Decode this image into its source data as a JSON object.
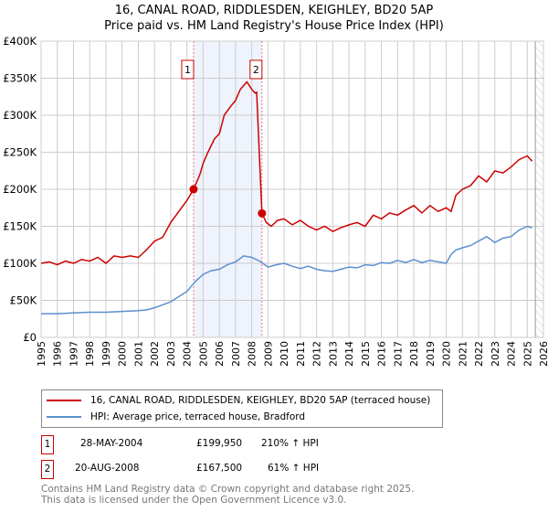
{
  "chart_data": {
    "type": "line",
    "title": "16, CANAL ROAD, RIDDLESDEN, KEIGHLEY, BD20 5AP",
    "subtitle": "Price paid vs. HM Land Registry's House Price Index (HPI)",
    "xlim": [
      1995,
      2026
    ],
    "ylim": [
      0,
      400000
    ],
    "x_ticks": [
      "1995",
      "1996",
      "1997",
      "1998",
      "1999",
      "2000",
      "2001",
      "2002",
      "2003",
      "2004",
      "2005",
      "2006",
      "2007",
      "2008",
      "2009",
      "2010",
      "2011",
      "2012",
      "2013",
      "2014",
      "2015",
      "2016",
      "2017",
      "2018",
      "2019",
      "2020",
      "2021",
      "2022",
      "2023",
      "2024",
      "2025",
      "2026"
    ],
    "y_ticks": [
      {
        "v": 0,
        "l": "£0"
      },
      {
        "v": 50000,
        "l": "£50K"
      },
      {
        "v": 100000,
        "l": "£100K"
      },
      {
        "v": 150000,
        "l": "£150K"
      },
      {
        "v": 200000,
        "l": "£200K"
      },
      {
        "v": 250000,
        "l": "£250K"
      },
      {
        "v": 300000,
        "l": "£300K"
      },
      {
        "v": 350000,
        "l": "£350K"
      },
      {
        "v": 400000,
        "l": "£400K"
      }
    ],
    "grid": true,
    "shaded_range": [
      2004.41,
      2008.63
    ],
    "forecast_hatch_from": 2025.5,
    "series": [
      {
        "name": "16, CANAL ROAD, RIDDLESDEN, KEIGHLEY, BD20 5AP (terraced house)",
        "color": "#cc0000",
        "x": [
          1995,
          1995.5,
          1996,
          1996.5,
          1997,
          1997.5,
          1998,
          1998.5,
          1999,
          1999.5,
          2000,
          2000.5,
          2001,
          2001.5,
          2002,
          2002.5,
          2003,
          2003.5,
          2004,
          2004.41,
          2004.8,
          2005,
          2005.3,
          2005.7,
          2006,
          2006.3,
          2006.7,
          2007,
          2007.3,
          2007.7,
          2008,
          2008.2,
          2008.3,
          2008.63,
          2008.9,
          2009.2,
          2009.6,
          2010,
          2010.5,
          2011,
          2011.5,
          2012,
          2012.5,
          2013,
          2013.5,
          2014,
          2014.5,
          2015,
          2015.5,
          2016,
          2016.5,
          2017,
          2017.5,
          2018,
          2018.5,
          2019,
          2019.5,
          2020,
          2020.3,
          2020.6,
          2021,
          2021.5,
          2022,
          2022.5,
          2023,
          2023.5,
          2024,
          2024.5,
          2025,
          2025.3
        ],
        "y": [
          100000,
          102000,
          98000,
          103000,
          100000,
          105000,
          103000,
          108000,
          100000,
          110000,
          108000,
          110000,
          108000,
          118000,
          130000,
          135000,
          155000,
          170000,
          185000,
          199950,
          220000,
          235000,
          250000,
          268000,
          275000,
          300000,
          312000,
          320000,
          335000,
          345000,
          335000,
          330000,
          331000,
          167500,
          155000,
          150000,
          158000,
          160000,
          152000,
          158000,
          150000,
          145000,
          150000,
          143000,
          148000,
          152000,
          155000,
          150000,
          165000,
          160000,
          168000,
          165000,
          172000,
          178000,
          168000,
          178000,
          170000,
          175000,
          170000,
          192000,
          200000,
          205000,
          218000,
          210000,
          225000,
          222000,
          230000,
          240000,
          245000,
          238000
        ]
      },
      {
        "name": "HPI: Average price, terraced house, Bradford",
        "color": "#5b8fd0",
        "x": [
          1995,
          1996,
          1997,
          1998,
          1999,
          2000,
          2001,
          2001.5,
          2002,
          2002.5,
          2003,
          2003.5,
          2004,
          2004.5,
          2005,
          2005.5,
          2006,
          2006.5,
          2007,
          2007.5,
          2008,
          2008.5,
          2009,
          2009.5,
          2010,
          2010.5,
          2011,
          2011.5,
          2012,
          2012.5,
          2013,
          2013.5,
          2014,
          2014.5,
          2015,
          2015.5,
          2016,
          2016.5,
          2017,
          2017.5,
          2018,
          2018.5,
          2019,
          2019.5,
          2020,
          2020.3,
          2020.6,
          2021,
          2021.5,
          2022,
          2022.5,
          2023,
          2023.5,
          2024,
          2024.5,
          2025,
          2025.3
        ],
        "y": [
          32000,
          32000,
          33000,
          34000,
          34000,
          35000,
          36000,
          37000,
          40000,
          44000,
          48000,
          55000,
          62000,
          75000,
          85000,
          90000,
          92000,
          98000,
          102000,
          110000,
          108000,
          103000,
          95000,
          98000,
          100000,
          96000,
          93000,
          96000,
          92000,
          90000,
          89000,
          92000,
          95000,
          94000,
          98000,
          97000,
          101000,
          100000,
          104000,
          101000,
          105000,
          101000,
          104000,
          102000,
          100000,
          112000,
          118000,
          121000,
          124000,
          130000,
          136000,
          128000,
          134000,
          136000,
          145000,
          150000,
          148000
        ]
      }
    ],
    "markers": [
      {
        "label": "1",
        "x": 2004.41,
        "y": 199950
      },
      {
        "label": "2",
        "x": 2008.63,
        "y": 167500
      }
    ]
  },
  "legend": [
    {
      "label": "16, CANAL ROAD, RIDDLESDEN, KEIGHLEY, BD20 5AP (terraced house)",
      "color": "#cc0000"
    },
    {
      "label": "HPI: Average price, terraced house, Bradford",
      "color": "#5b8fd0"
    }
  ],
  "transactions": [
    {
      "num": "1",
      "date": "28-MAY-2004",
      "price": "£199,950",
      "hpi": "210% ↑ HPI"
    },
    {
      "num": "2",
      "date": "20-AUG-2008",
      "price": "£167,500",
      "hpi": "61% ↑ HPI"
    }
  ],
  "footer": {
    "line1": "Contains HM Land Registry data © Crown copyright and database right 2025.",
    "line2": "This data is licensed under the Open Government Licence v3.0."
  }
}
